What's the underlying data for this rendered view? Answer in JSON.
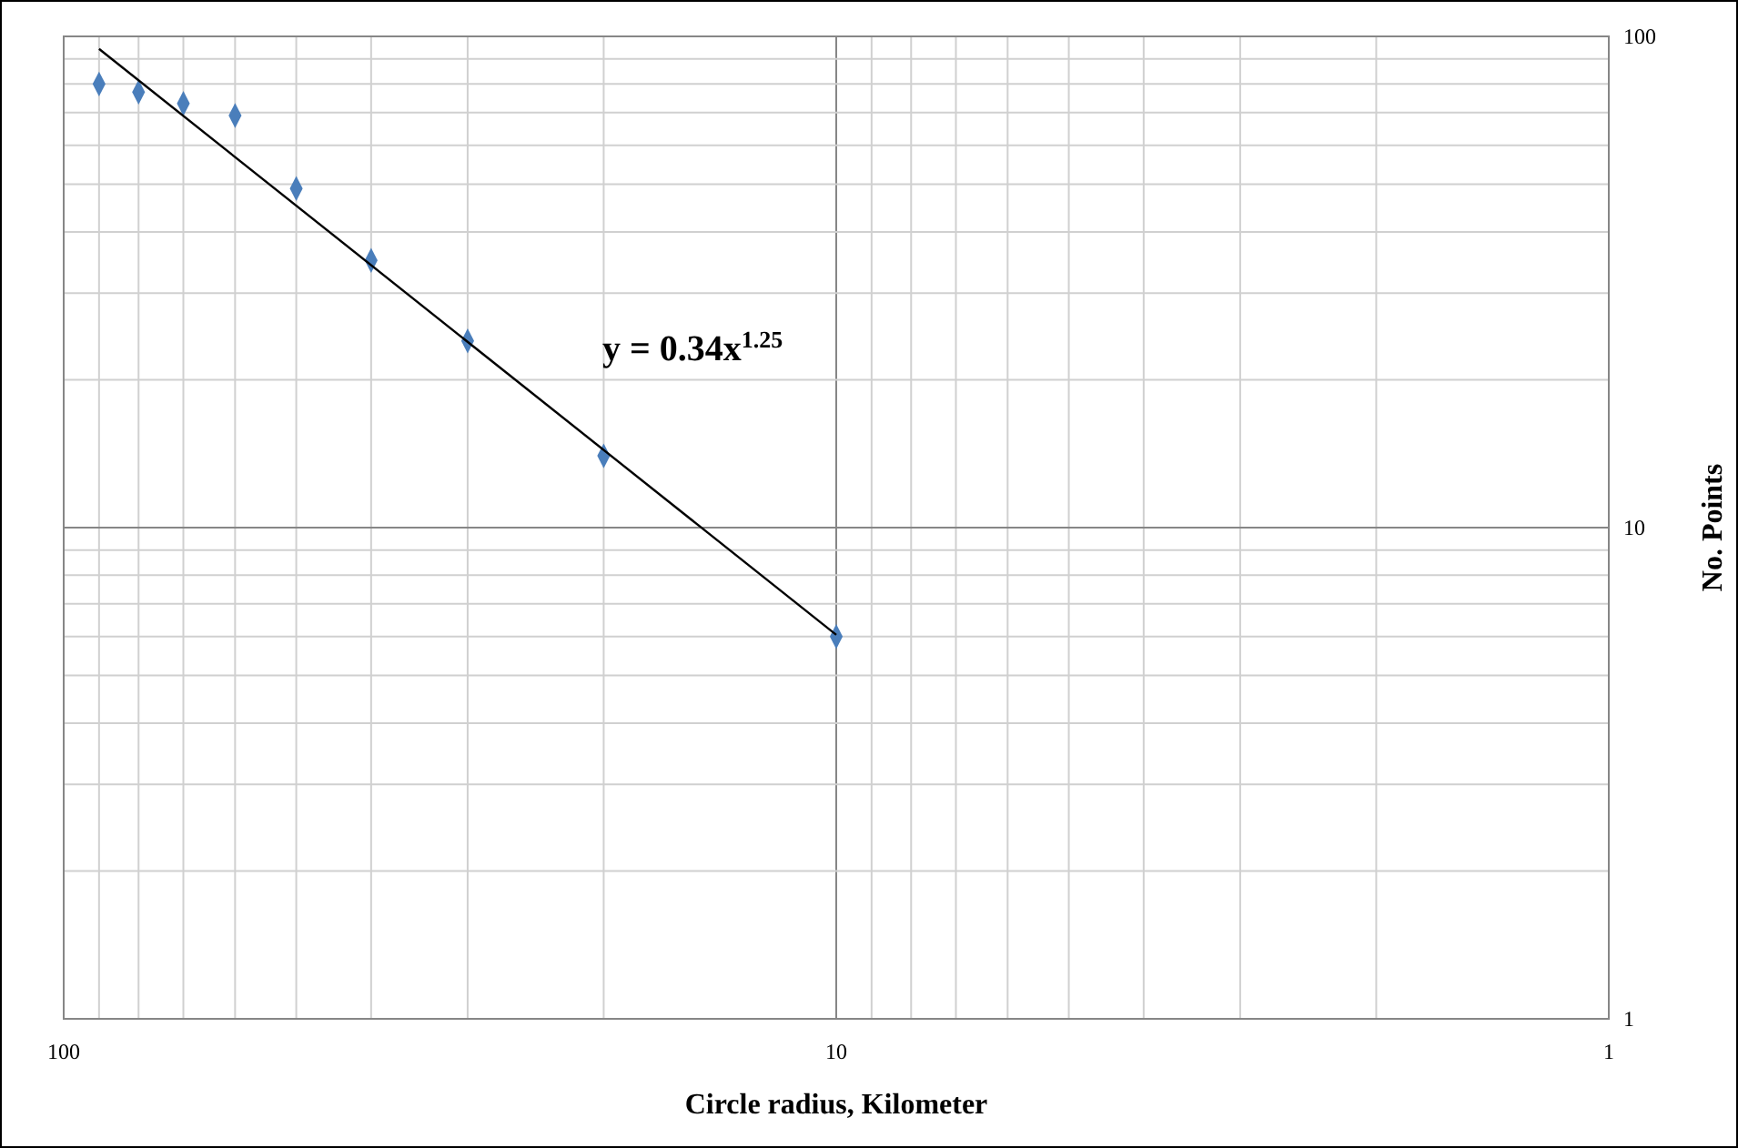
{
  "chart_data": {
    "type": "scatter",
    "xlabel": "Circle  radius, Kilometer",
    "ylabel": "No. Points",
    "log": "xy",
    "grid": true,
    "xlim": [
      100,
      1
    ],
    "ylim": [
      1,
      100
    ],
    "xticks": [
      {
        "value": 100,
        "label": "100"
      },
      {
        "value": 90,
        "label": null
      },
      {
        "value": 80,
        "label": null
      },
      {
        "value": 70,
        "label": null
      },
      {
        "value": 60,
        "label": null
      },
      {
        "value": 50,
        "label": null
      },
      {
        "value": 40,
        "label": null
      },
      {
        "value": 30,
        "label": null
      },
      {
        "value": 20,
        "label": null
      },
      {
        "value": 10,
        "label": "10"
      },
      {
        "value": 9,
        "label": null
      },
      {
        "value": 8,
        "label": null
      },
      {
        "value": 7,
        "label": null
      },
      {
        "value": 6,
        "label": null
      },
      {
        "value": 5,
        "label": null
      },
      {
        "value": 4,
        "label": null
      },
      {
        "value": 3,
        "label": null
      },
      {
        "value": 2,
        "label": null
      },
      {
        "value": 1,
        "label": "1"
      }
    ],
    "yticks": [
      {
        "value": 1,
        "label": "1"
      },
      {
        "value": 2,
        "label": null
      },
      {
        "value": 3,
        "label": null
      },
      {
        "value": 4,
        "label": null
      },
      {
        "value": 5,
        "label": null
      },
      {
        "value": 6,
        "label": null
      },
      {
        "value": 7,
        "label": null
      },
      {
        "value": 8,
        "label": null
      },
      {
        "value": 9,
        "label": null
      },
      {
        "value": 10,
        "label": "10"
      },
      {
        "value": 20,
        "label": null
      },
      {
        "value": 30,
        "label": null
      },
      {
        "value": 40,
        "label": null
      },
      {
        "value": 50,
        "label": null
      },
      {
        "value": 60,
        "label": null
      },
      {
        "value": 70,
        "label": null
      },
      {
        "value": 80,
        "label": null
      },
      {
        "value": 90,
        "label": null
      },
      {
        "value": 100,
        "label": "100"
      }
    ],
    "series": [
      {
        "marker": "diamond",
        "color": "#4a7ebb",
        "x": [
          90,
          80,
          70,
          60,
          50,
          40,
          30,
          20,
          10
        ],
        "values": [
          80,
          77,
          73,
          69,
          49,
          35,
          24,
          14,
          6
        ]
      },
      {
        "type": "line",
        "marker": "none",
        "color": "#000000",
        "x": [
          90,
          10
        ],
        "values": [
          94.3,
          6.05
        ]
      }
    ],
    "annotations": [
      "y = 0.34x$^{1.25}$"
    ]
  }
}
